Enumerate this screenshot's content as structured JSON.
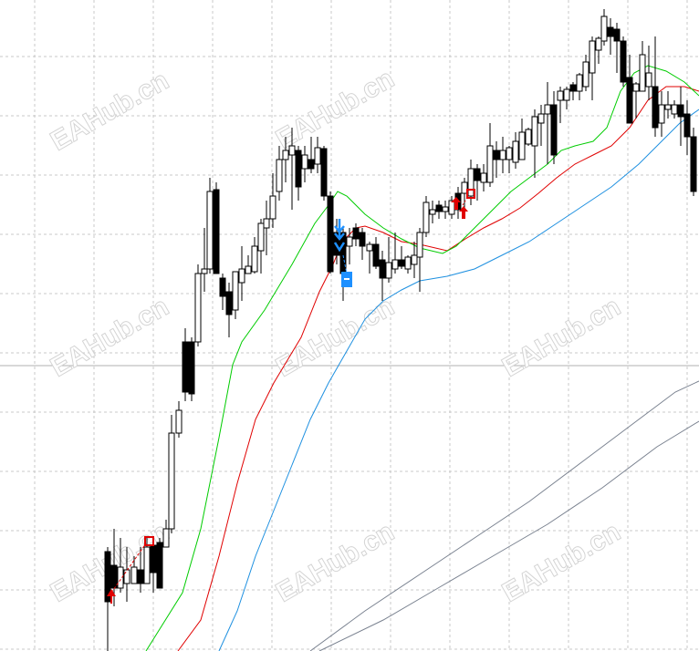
{
  "watermarks": [
    "EAHub.cn",
    "EAHub.cn",
    "EAHub.cn",
    "EAHub.cn",
    "EAHub.cn",
    "EAHub.cn",
    "EAHub.cn",
    "EAHub.cn"
  ]
}
